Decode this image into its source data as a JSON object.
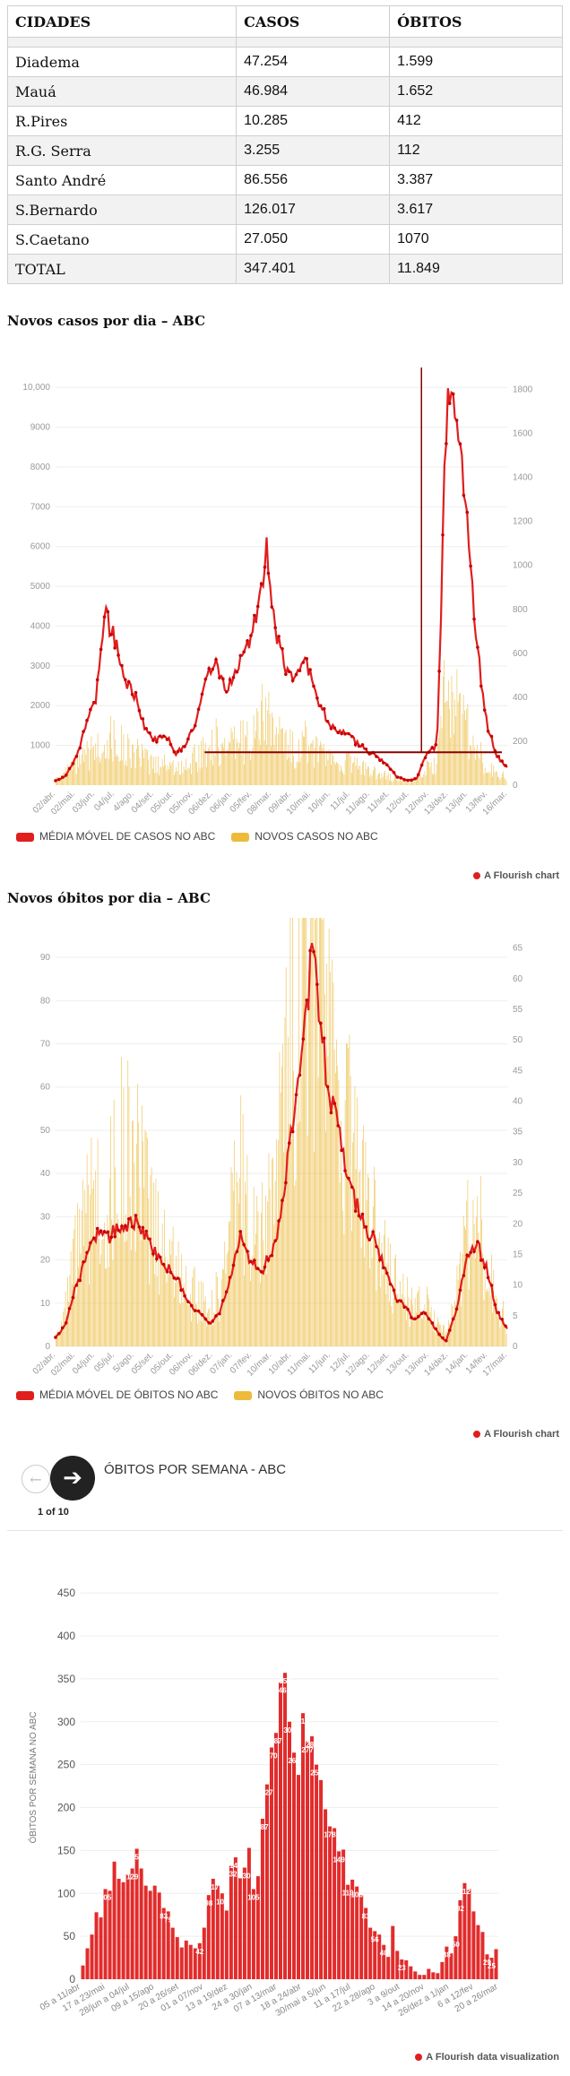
{
  "table": {
    "headers": [
      "CIDADES",
      "CASOS",
      "ÓBITOS"
    ],
    "rows": [
      [
        "Diadema",
        "47.254",
        "1.599"
      ],
      [
        "Mauá",
        "46.984",
        "1.652"
      ],
      [
        "R.Pires",
        "10.285",
        "412"
      ],
      [
        "R.G. Serra",
        "3.255",
        "112"
      ],
      [
        "Santo André",
        "86.556",
        "3.387"
      ],
      [
        "S.Bernardo",
        "126.017",
        "3.617"
      ],
      [
        "S.Caetano",
        "27.050",
        "1070"
      ],
      [
        "TOTAL",
        "347.401",
        "11.849"
      ]
    ]
  },
  "cases_section": {
    "heading": "Novos casos por dia – ABC",
    "legend": [
      "MÉDIA MÓVEL DE CASOS NO ABC",
      "NOVOS CASOS NO ABC"
    ],
    "credit": "A Flourish chart"
  },
  "deaths_section": {
    "heading": "Novos óbitos por dia – ABC",
    "legend": [
      "MÉDIA MÓVEL DE ÓBITOS NO ABC",
      "NOVOS ÓBITOS NO ABC"
    ],
    "credit": "A Flourish chart"
  },
  "weekly_section": {
    "story_title": "ÓBITOS POR SEMANA - ABC",
    "story_counter": "1 of 10",
    "prev_icon": "arrow-left-icon",
    "next_icon": "arrow-right-icon",
    "credit": "A Flourish data visualization"
  },
  "colors": {
    "red": "#e01e1e",
    "yellow": "#ecbb3a",
    "dark_red": "#8b0000"
  },
  "chart_data": [
    {
      "type": "line",
      "title": "Novos casos por dia – ABC",
      "ylim_left": [
        0,
        10500
      ],
      "ylim_right": [
        0,
        1900
      ],
      "left_ticks": [
        "1000",
        "2000",
        "3000",
        "4000",
        "5000",
        "6000",
        "7000",
        "8000",
        "9000",
        "10,000"
      ],
      "right_ticks": [
        "0",
        "200",
        "400",
        "600",
        "800",
        "1000",
        "1200",
        "1400",
        "1600",
        "1800"
      ],
      "x_labels": [
        "02/abr.",
        "02/mai.",
        "03/jun.",
        "04/jul.",
        "4/ago.",
        "04/set.",
        "05/out.",
        "05/nov.",
        "06/dez.",
        "06/jan.",
        "05/fev.",
        "08/mar.",
        "09/abr.",
        "10/mai.",
        "10/jun.",
        "11/jul.",
        "11/ago.",
        "11/set.",
        "12/out.",
        "12/nov.",
        "13/dez.",
        "13/jan.",
        "13/fev.",
        "16/mar."
      ],
      "series": [
        {
          "name": "MÉDIA MÓVEL DE CASOS NO ABC",
          "axis": "right",
          "values": [
            20,
            40,
            120,
            260,
            390,
            780,
            640,
            470,
            400,
            250,
            200,
            230,
            140,
            190,
            300,
            480,
            560,
            420,
            500,
            630,
            760,
            1070,
            700,
            500,
            490,
            560,
            390,
            310,
            230,
            250,
            190,
            160,
            130,
            90,
            40,
            20,
            30,
            150,
            180,
            1770,
            1700,
            1200,
            620,
            270,
            130,
            80
          ]
        },
        {
          "name": "NOVOS CASOS NO ABC",
          "axis": "left",
          "values": [
            200,
            300,
            500,
            700,
            900,
            1200,
            1100,
            900,
            800,
            600,
            500,
            600,
            400,
            500,
            700,
            900,
            1100,
            900,
            1000,
            1200,
            1400,
            1800,
            1300,
            1000,
            900,
            1100,
            800,
            700,
            500,
            600,
            500,
            400,
            300,
            250,
            150,
            100,
            150,
            400,
            500,
            2500,
            2200,
            1500,
            900,
            500,
            300,
            200
          ]
        },
        {
          "name": "threshold line",
          "axis": "right",
          "value": 150
        }
      ]
    },
    {
      "type": "line",
      "title": "Novos óbitos por dia – ABC",
      "ylim_left": [
        0,
        95
      ],
      "ylim_right": [
        0,
        67
      ],
      "left_ticks": [
        "0",
        "10",
        "20",
        "30",
        "40",
        "50",
        "60",
        "70",
        "80",
        "90"
      ],
      "right_ticks": [
        "0",
        "5",
        "10",
        "15",
        "20",
        "25",
        "30",
        "35",
        "40",
        "45",
        "50",
        "55",
        "60",
        "65"
      ],
      "x_labels": [
        "02/abr.",
        "02/mai.",
        "04/jun.",
        "05/jul.",
        "5/ago.",
        "05/set.",
        "05/out.",
        "06/nov.",
        "06/dez.",
        "07/jan.",
        "07/fev.",
        "10/mar.",
        "10/abr.",
        "11/mai.",
        "11/jun.",
        "12/jul.",
        "12/ago.",
        "12/set.",
        "13/out.",
        "13/nov.",
        "14/dez.",
        "14/jan.",
        "14/fev.",
        "17/mar."
      ],
      "series": [
        {
          "name": "MÉDIA MÓVEL DE ÓBITOS NO ABC",
          "axis": "left",
          "values": [
            2,
            5,
            14,
            20,
            26,
            25,
            27,
            28,
            29,
            25,
            20,
            18,
            15,
            10,
            8,
            5,
            8,
            15,
            25,
            20,
            17,
            22,
            30,
            50,
            65,
            92,
            70,
            55,
            45,
            35,
            28,
            25,
            18,
            12,
            9,
            6,
            8,
            4,
            1,
            8,
            20,
            24,
            18,
            8,
            4
          ]
        },
        {
          "name": "NOVOS ÓBITOS NO ABC",
          "axis": "right",
          "values": [
            2,
            6,
            15,
            20,
            25,
            22,
            30,
            32,
            28,
            22,
            18,
            16,
            12,
            9,
            8,
            6,
            9,
            18,
            28,
            22,
            16,
            24,
            35,
            55,
            62,
            65,
            55,
            45,
            40,
            32,
            25,
            20,
            15,
            11,
            8,
            6,
            7,
            4,
            2,
            8,
            18,
            22,
            15,
            7,
            4
          ]
        }
      ]
    },
    {
      "type": "bar",
      "title": "ÓBITOS POR SEMANA - ABC",
      "ylabel": "ÓBITOS POR SEMANA NO ABC",
      "ylim": [
        0,
        470
      ],
      "y_ticks": [
        "0",
        "50",
        "100",
        "150",
        "200",
        "250",
        "300",
        "350",
        "400",
        "450"
      ],
      "x_labels": [
        "05 a 11/abr",
        "17 a 23/mai",
        "28/jun a 04/jul",
        "09 a 15/ago",
        "20 a 26/set",
        "01 a 07/nov",
        "13 a 19/dez",
        "24 a 30/jan",
        "07 a 13/mar",
        "18 a 24/abr",
        "30/mai a 5/jun",
        "11 a 17/jul",
        "22 a 28/ago",
        "3 a 9/out",
        "14 a 20/nov",
        "26/dez a 1/jan",
        "6 a 12/fev",
        "20 a 26/mar"
      ],
      "values": [
        16,
        36,
        52,
        78,
        72,
        105,
        103,
        137,
        117,
        113,
        122,
        129,
        152,
        129,
        109,
        103,
        109,
        101,
        83,
        79,
        60,
        49,
        37,
        45,
        40,
        36,
        42,
        60,
        98,
        117,
        109,
        100,
        80,
        132,
        142,
        118,
        130,
        153,
        105,
        120,
        187,
        227,
        270,
        287,
        346,
        357,
        300,
        264,
        238,
        310,
        277,
        283,
        250,
        232,
        198,
        178,
        176,
        149,
        151,
        110,
        116,
        108,
        98,
        83,
        60,
        56,
        52,
        40,
        26,
        62,
        33,
        23,
        22,
        15,
        9,
        5,
        5,
        12,
        8,
        7,
        20,
        38,
        30,
        50,
        92,
        112,
        105,
        79,
        63,
        55,
        29,
        25,
        35
      ],
      "value_labels": [
        {
          "i": 5,
          "text": "105"
        },
        {
          "i": 11,
          "text": "129"
        },
        {
          "i": 12,
          "text": "152"
        },
        {
          "i": 18,
          "text": "83"
        },
        {
          "i": 19,
          "text": "79"
        },
        {
          "i": 26,
          "text": "42"
        },
        {
          "i": 28,
          "text": "98"
        },
        {
          "i": 29,
          "text": "117"
        },
        {
          "i": 31,
          "text": "100"
        },
        {
          "i": 33,
          "text": "132"
        },
        {
          "i": 34,
          "text": "142"
        },
        {
          "i": 36,
          "text": "130"
        },
        {
          "i": 38,
          "text": "105"
        },
        {
          "i": 40,
          "text": "187"
        },
        {
          "i": 41,
          "text": "227"
        },
        {
          "i": 42,
          "text": "270"
        },
        {
          "i": 43,
          "text": "287"
        },
        {
          "i": 44,
          "text": "346"
        },
        {
          "i": 45,
          "text": "357"
        },
        {
          "i": 46,
          "text": "300"
        },
        {
          "i": 47,
          "text": "264"
        },
        {
          "i": 49,
          "text": "310"
        },
        {
          "i": 50,
          "text": "277"
        },
        {
          "i": 51,
          "text": "283"
        },
        {
          "i": 52,
          "text": "250"
        },
        {
          "i": 55,
          "text": "178"
        },
        {
          "i": 57,
          "text": "149"
        },
        {
          "i": 59,
          "text": "110"
        },
        {
          "i": 61,
          "text": "108"
        },
        {
          "i": 63,
          "text": "83"
        },
        {
          "i": 65,
          "text": "56"
        },
        {
          "i": 67,
          "text": "40"
        },
        {
          "i": 71,
          "text": "23"
        },
        {
          "i": 81,
          "text": "38"
        },
        {
          "i": 83,
          "text": "50"
        },
        {
          "i": 84,
          "text": "92"
        },
        {
          "i": 85,
          "text": "112"
        },
        {
          "i": 90,
          "text": "29"
        },
        {
          "i": 91,
          "text": "25"
        }
      ]
    }
  ]
}
